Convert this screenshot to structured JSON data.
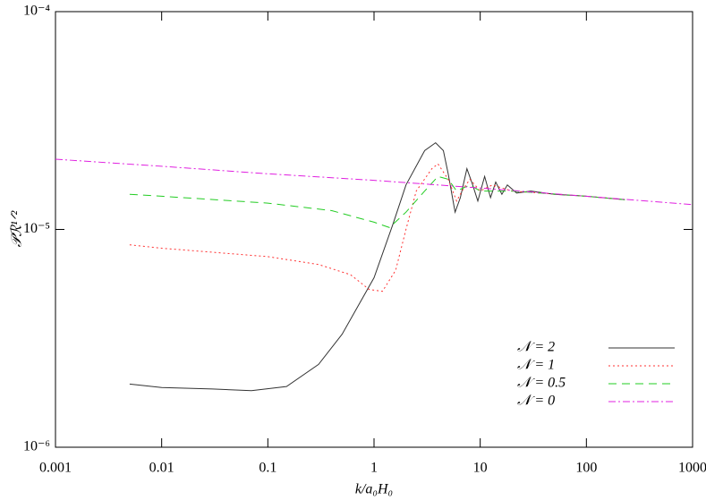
{
  "chart_data": {
    "type": "line",
    "xlabel": "k/a₀H₀",
    "ylabel": "𝒫ℛ¹ᐟ²",
    "xlog": true,
    "ylog": true,
    "legend": "lower right",
    "xlim": [
      0.001,
      1000
    ],
    "ylim": [
      1e-06,
      0.0001
    ],
    "xticks": [
      0.001,
      0.01,
      0.1,
      1,
      10,
      100,
      1000
    ],
    "yticks": [
      {
        "value": 1e-06,
        "label": "10⁻⁶"
      },
      {
        "value": 1e-05,
        "label": "10⁻⁵"
      },
      {
        "value": 0.0001,
        "label": "10⁻⁴"
      }
    ],
    "series": [
      {
        "name": "𝒩 = 2",
        "color": "#333333",
        "dash": "none",
        "x": [
          0.005,
          0.01,
          0.03,
          0.07,
          0.15,
          0.3,
          0.5,
          1,
          1.5,
          2,
          3,
          3.8,
          4.5,
          5,
          5.8,
          6.5,
          7.5,
          8.5,
          9.5,
          11,
          12.5,
          14,
          16,
          18,
          22,
          30,
          50,
          100,
          230
        ],
        "values": [
          1.95e-06,
          1.88e-06,
          1.85e-06,
          1.82e-06,
          1.9e-06,
          2.4e-06,
          3.3e-06,
          6e-06,
          1.05e-05,
          1.6e-05,
          2.3e-05,
          2.5e-05,
          2.3e-05,
          1.8e-05,
          1.2e-05,
          1.4e-05,
          1.9e-05,
          1.6e-05,
          1.35e-05,
          1.75e-05,
          1.4e-05,
          1.65e-05,
          1.45e-05,
          1.6e-05,
          1.47e-05,
          1.5e-05,
          1.45e-05,
          1.42e-05,
          1.37e-05
        ]
      },
      {
        "name": "𝒩 = 1",
        "color": "#ff3030",
        "dash": "2,3",
        "x": [
          0.005,
          0.01,
          0.1,
          0.3,
          0.6,
          0.9,
          1.2,
          1.6,
          2,
          2.5,
          3.5,
          4,
          5,
          6,
          7,
          8,
          10,
          13,
          20,
          100,
          230
        ],
        "values": [
          8.5e-06,
          8.2e-06,
          7.5e-06,
          6.9e-06,
          6.2e-06,
          5.3e-06,
          5.2e-06,
          6.5e-06,
          1e-05,
          1.5e-05,
          1.9e-05,
          2e-05,
          1.7e-05,
          1.35e-05,
          1.55e-05,
          1.7e-05,
          1.5e-05,
          1.6e-05,
          1.5e-05,
          1.42e-05,
          1.37e-05
        ]
      },
      {
        "name": "𝒩 = 0.5",
        "color": "#22cc22",
        "dash": "9,6",
        "x": [
          0.005,
          0.01,
          0.1,
          0.4,
          1,
          1.4,
          2,
          3,
          4,
          5,
          6,
          8,
          10,
          20,
          100,
          230
        ],
        "values": [
          1.45e-05,
          1.42e-05,
          1.32e-05,
          1.22e-05,
          1.08e-05,
          1.02e-05,
          1.2e-05,
          1.5e-05,
          1.75e-05,
          1.7e-05,
          1.5e-05,
          1.6e-05,
          1.5e-05,
          1.5e-05,
          1.42e-05,
          1.37e-05
        ]
      },
      {
        "name": "𝒩 = 0",
        "color": "#e020e0",
        "dash": "8,3,2,3",
        "x": [
          0.001,
          0.01,
          0.1,
          1,
          10,
          100,
          1000
        ],
        "values": [
          2.1e-05,
          1.95e-05,
          1.8e-05,
          1.68e-05,
          1.55e-05,
          1.42e-05,
          1.3e-05
        ]
      }
    ]
  }
}
